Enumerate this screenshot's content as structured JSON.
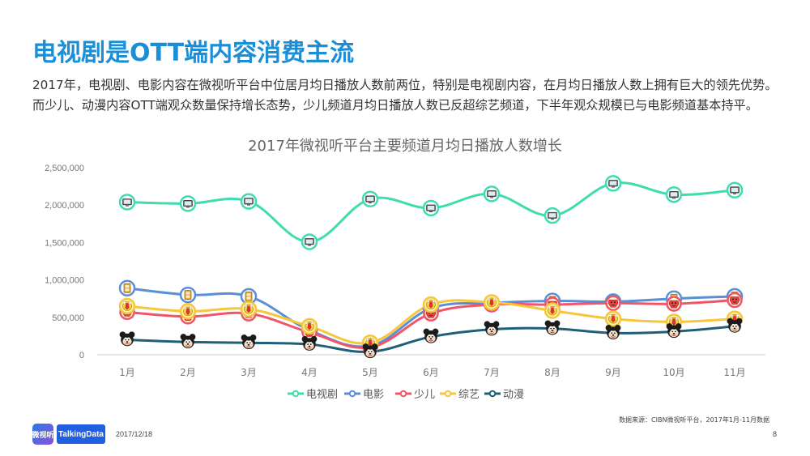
{
  "page": {
    "title": "电视剧是OTT端内容消费主流",
    "description": "2017年，电视剧、电影内容在微视听平台中位居月均日播放人数前两位，特别是电视剧内容，在月均日播放人数上拥有巨大的领先优势。而少儿、动漫内容OTT端观众数量保持增长态势，少儿频道月均日播放人数已反超综艺频道，下半年观众规模已与电影频道基本持平。",
    "source": "数据来源：CIBN微视听平台，2017年1月-11月数据",
    "footer": {
      "logo_text": "微视听",
      "brand": "TalkingData",
      "date": "2017/12/18",
      "page_number": "8"
    }
  },
  "chart_data": {
    "type": "line",
    "title": "2017年微视听平台主要频道月均日播放人数增长",
    "xlabel": "",
    "ylabel": "",
    "categories": [
      "1月",
      "2月",
      "3月",
      "4月",
      "5月",
      "6月",
      "7月",
      "8月",
      "9月",
      "10月",
      "11月"
    ],
    "ylim": [
      0,
      2500000
    ],
    "yticks": [
      0,
      500000,
      1000000,
      1500000,
      2000000,
      2500000
    ],
    "ytick_labels": [
      "0",
      "500,000",
      "1,000,000",
      "1,500,000",
      "2,000,000",
      "2,500,000"
    ],
    "grid": false,
    "legend_position": "bottom",
    "series": [
      {
        "name": "电视剧",
        "color": "#3fdcb0",
        "marker": "tv-icon",
        "values": [
          2040000,
          2020000,
          2050000,
          1510000,
          2080000,
          1960000,
          2150000,
          1860000,
          2290000,
          2140000,
          2200000
        ]
      },
      {
        "name": "电影",
        "color": "#5a8fd6",
        "marker": "film-icon",
        "values": [
          890000,
          800000,
          780000,
          330000,
          120000,
          620000,
          690000,
          720000,
          710000,
          750000,
          780000
        ]
      },
      {
        "name": "少儿",
        "color": "#f0566b",
        "marker": "kids-icon",
        "values": [
          570000,
          510000,
          550000,
          300000,
          100000,
          550000,
          670000,
          670000,
          690000,
          680000,
          730000
        ]
      },
      {
        "name": "综艺",
        "color": "#f6c63c",
        "marker": "variety-icon",
        "values": [
          650000,
          580000,
          610000,
          380000,
          160000,
          670000,
          700000,
          590000,
          480000,
          440000,
          480000
        ]
      },
      {
        "name": "动漫",
        "color": "#1f5f78",
        "marker": "anime-icon",
        "values": [
          200000,
          170000,
          160000,
          140000,
          40000,
          240000,
          340000,
          350000,
          290000,
          310000,
          380000
        ]
      }
    ]
  }
}
